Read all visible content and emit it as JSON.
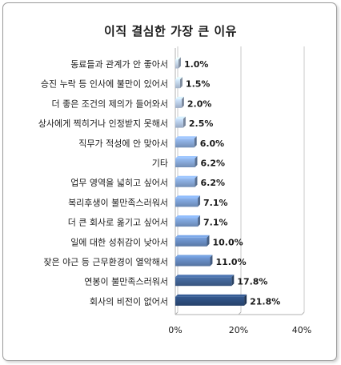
{
  "chart_data": {
    "type": "bar",
    "orientation": "horizontal",
    "title": "이직 결심한 가장 큰 이유",
    "categories": [
      "동료들과 관계가 안 좋아서",
      "승진 누락 등 인사에 불만이 있어서",
      "더 좋은 조건의 제의가 들어와서",
      "상사에게 찍히거나 인정받지 못해서",
      "직무가 적성에 안 맞아서",
      "기타",
      "업무 영역을 넓히고 싶어서",
      "복리후생이 불만족스러워서",
      "더 큰 회사로 옮기고 싶어서",
      "일에 대한 성취감이 낮아서",
      "잦은 야근 등 근무환경이 열악해서",
      "연봉이 불만족스러워서",
      "회사의 비전이 없어서"
    ],
    "values": [
      1.0,
      1.5,
      2.0,
      2.5,
      6.0,
      6.2,
      6.2,
      7.1,
      7.1,
      10.0,
      11.0,
      17.8,
      21.8
    ],
    "value_labels": [
      "1.0%",
      "1.5%",
      "2.0%",
      "2.5%",
      "6.0%",
      "6.2%",
      "6.2%",
      "7.1%",
      "7.1%",
      "10.0%",
      "11.0%",
      "17.8%",
      "21.8%"
    ],
    "xlim": [
      0,
      40
    ],
    "xticks": [
      "0%",
      "20%",
      "40%"
    ],
    "grid": true,
    "colors": {
      "light": "#c9d6ea",
      "mid": "#6f93c8",
      "dark": "#2b4a78"
    }
  }
}
